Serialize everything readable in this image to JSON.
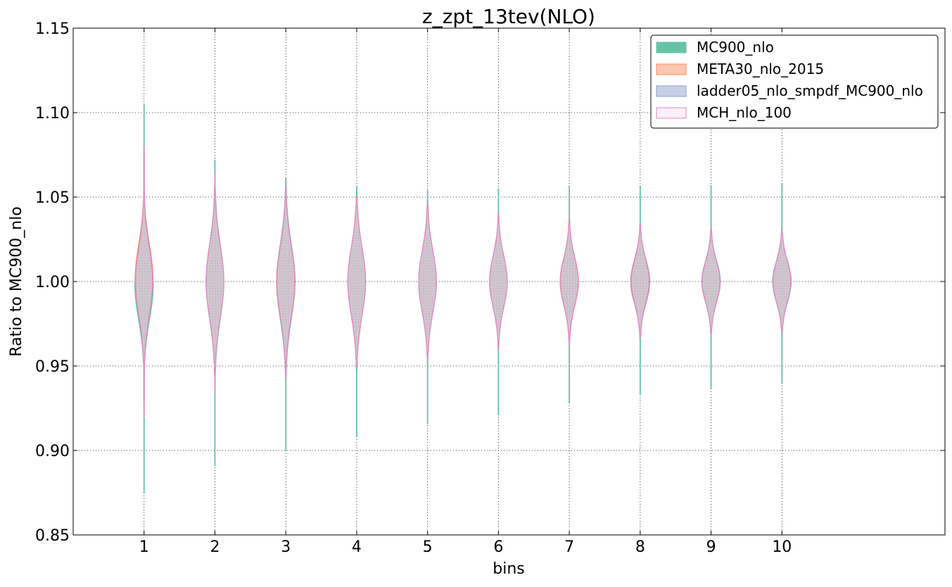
{
  "chart_data": {
    "type": "violin",
    "title": "z_zpt_13tev(NLO)",
    "xlabel": "bins",
    "ylabel": "Ratio to MC900_nlo",
    "ylim": [
      0.85,
      1.15
    ],
    "xlim": [
      0,
      12.3
    ],
    "y_ticks": [
      "0.85",
      "0.90",
      "0.95",
      "1.00",
      "1.05",
      "1.10",
      "1.15"
    ],
    "x_ticks": [
      "1",
      "2",
      "3",
      "4",
      "5",
      "6",
      "7",
      "8",
      "9",
      "10"
    ],
    "grid": true,
    "legend_position": "top-right",
    "series": [
      {
        "name": "MC900_nlo",
        "fill": "#66c2a5",
        "edge": "#66c2a5",
        "fill_opacity": 1,
        "pattern": false,
        "violins": [
          {
            "bin": 1,
            "center": 0.998,
            "sigma": 0.02,
            "width": 0.26,
            "ymin": 0.875,
            "ymax": 1.105
          },
          {
            "bin": 2,
            "center": 1.0,
            "sigma": 0.022,
            "width": 0.25,
            "ymin": 0.891,
            "ymax": 1.072
          },
          {
            "bin": 3,
            "center": 1.0,
            "sigma": 0.022,
            "width": 0.26,
            "ymin": 0.9,
            "ymax": 1.061
          },
          {
            "bin": 4,
            "center": 1.0,
            "sigma": 0.02,
            "width": 0.25,
            "ymin": 0.908,
            "ymax": 1.056
          },
          {
            "bin": 5,
            "center": 1.0,
            "sigma": 0.018,
            "width": 0.25,
            "ymin": 0.916,
            "ymax": 1.054
          },
          {
            "bin": 6,
            "center": 1.0,
            "sigma": 0.015,
            "width": 0.25,
            "ymin": 0.921,
            "ymax": 1.055
          },
          {
            "bin": 7,
            "center": 1.0,
            "sigma": 0.014,
            "width": 0.25,
            "ymin": 0.928,
            "ymax": 1.056
          },
          {
            "bin": 8,
            "center": 1.0,
            "sigma": 0.013,
            "width": 0.25,
            "ymin": 0.933,
            "ymax": 1.056
          },
          {
            "bin": 9,
            "center": 1.0,
            "sigma": 0.012,
            "width": 0.25,
            "ymin": 0.937,
            "ymax": 1.057
          },
          {
            "bin": 10,
            "center": 1.0,
            "sigma": 0.012,
            "width": 0.25,
            "ymin": 0.94,
            "ymax": 1.058
          }
        ]
      },
      {
        "name": "META30_nlo_2015",
        "fill": "#fc8d62",
        "edge": "#fc8d62",
        "fill_opacity": 0.5,
        "pattern": false,
        "violins": [
          {
            "bin": 1,
            "center": 1.002,
            "sigma": 0.02,
            "width": 0.25,
            "ymin": 0.93,
            "ymax": 1.075
          },
          {
            "bin": 2,
            "center": 1.0,
            "sigma": 0.021,
            "width": 0.25,
            "ymin": 0.935,
            "ymax": 1.062
          },
          {
            "bin": 3,
            "center": 1.0,
            "sigma": 0.021,
            "width": 0.26,
            "ymin": 0.945,
            "ymax": 1.055
          },
          {
            "bin": 4,
            "center": 1.0,
            "sigma": 0.02,
            "width": 0.25,
            "ymin": 0.95,
            "ymax": 1.05
          },
          {
            "bin": 5,
            "center": 1.0,
            "sigma": 0.018,
            "width": 0.25,
            "ymin": 0.955,
            "ymax": 1.045
          },
          {
            "bin": 6,
            "center": 1.0,
            "sigma": 0.015,
            "width": 0.25,
            "ymin": 0.962,
            "ymax": 1.04
          },
          {
            "bin": 7,
            "center": 1.0,
            "sigma": 0.014,
            "width": 0.26,
            "ymin": 0.965,
            "ymax": 1.035
          },
          {
            "bin": 8,
            "center": 1.0,
            "sigma": 0.013,
            "width": 0.27,
            "ymin": 0.968,
            "ymax": 1.033
          },
          {
            "bin": 9,
            "center": 1.0,
            "sigma": 0.012,
            "width": 0.26,
            "ymin": 0.97,
            "ymax": 1.03
          },
          {
            "bin": 10,
            "center": 1.0,
            "sigma": 0.012,
            "width": 0.26,
            "ymin": 0.972,
            "ymax": 1.03
          }
        ]
      },
      {
        "name": "ladder05_nlo_smpdf_MC900_nlo",
        "fill": "#8da0cb",
        "edge": "#8da0cb",
        "fill_opacity": 0.5,
        "pattern": false,
        "violins": [
          {
            "bin": 1,
            "center": 1.0,
            "sigma": 0.02,
            "width": 0.24,
            "ymin": 0.925,
            "ymax": 1.08
          },
          {
            "bin": 2,
            "center": 1.0,
            "sigma": 0.021,
            "width": 0.25,
            "ymin": 0.935,
            "ymax": 1.065
          },
          {
            "bin": 3,
            "center": 1.0,
            "sigma": 0.021,
            "width": 0.25,
            "ymin": 0.944,
            "ymax": 1.057
          },
          {
            "bin": 4,
            "center": 1.0,
            "sigma": 0.02,
            "width": 0.25,
            "ymin": 0.95,
            "ymax": 1.05
          },
          {
            "bin": 5,
            "center": 1.0,
            "sigma": 0.018,
            "width": 0.25,
            "ymin": 0.956,
            "ymax": 1.046
          },
          {
            "bin": 6,
            "center": 1.0,
            "sigma": 0.015,
            "width": 0.25,
            "ymin": 0.96,
            "ymax": 1.041
          },
          {
            "bin": 7,
            "center": 1.0,
            "sigma": 0.014,
            "width": 0.25,
            "ymin": 0.964,
            "ymax": 1.037
          },
          {
            "bin": 8,
            "center": 1.0,
            "sigma": 0.013,
            "width": 0.26,
            "ymin": 0.967,
            "ymax": 1.034
          },
          {
            "bin": 9,
            "center": 1.0,
            "sigma": 0.012,
            "width": 0.26,
            "ymin": 0.969,
            "ymax": 1.031
          },
          {
            "bin": 10,
            "center": 1.0,
            "sigma": 0.012,
            "width": 0.26,
            "ymin": 0.97,
            "ymax": 1.03
          }
        ]
      },
      {
        "name": "MCH_nlo_100",
        "fill": "#ffeaf7",
        "edge": "#e78ac3",
        "fill_opacity": 0.5,
        "pattern": true,
        "violins": [
          {
            "bin": 1,
            "center": 1.0,
            "sigma": 0.02,
            "width": 0.24,
            "ymin": 0.92,
            "ymax": 1.08
          },
          {
            "bin": 2,
            "center": 1.0,
            "sigma": 0.021,
            "width": 0.25,
            "ymin": 0.935,
            "ymax": 1.063
          },
          {
            "bin": 3,
            "center": 1.0,
            "sigma": 0.021,
            "width": 0.25,
            "ymin": 0.943,
            "ymax": 1.057
          },
          {
            "bin": 4,
            "center": 1.0,
            "sigma": 0.02,
            "width": 0.25,
            "ymin": 0.95,
            "ymax": 1.05
          },
          {
            "bin": 5,
            "center": 1.0,
            "sigma": 0.018,
            "width": 0.25,
            "ymin": 0.955,
            "ymax": 1.045
          },
          {
            "bin": 6,
            "center": 1.0,
            "sigma": 0.015,
            "width": 0.25,
            "ymin": 0.96,
            "ymax": 1.04
          },
          {
            "bin": 7,
            "center": 1.0,
            "sigma": 0.014,
            "width": 0.25,
            "ymin": 0.963,
            "ymax": 1.037
          },
          {
            "bin": 8,
            "center": 1.0,
            "sigma": 0.013,
            "width": 0.25,
            "ymin": 0.967,
            "ymax": 1.034
          },
          {
            "bin": 9,
            "center": 1.0,
            "sigma": 0.012,
            "width": 0.25,
            "ymin": 0.969,
            "ymax": 1.031
          },
          {
            "bin": 10,
            "center": 1.0,
            "sigma": 0.012,
            "width": 0.25,
            "ymin": 0.97,
            "ymax": 1.03
          }
        ]
      }
    ]
  }
}
